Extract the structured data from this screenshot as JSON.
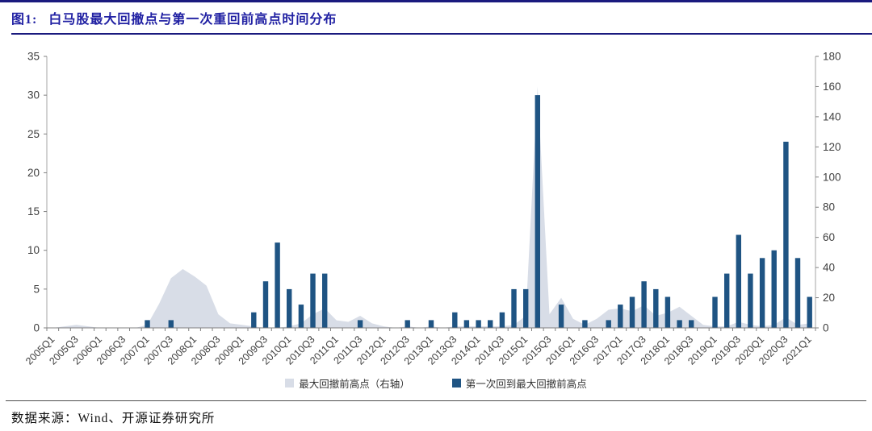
{
  "header": {
    "figure_label": "图1:",
    "title": "白马股最大回撤点与第一次重回前高点时间分布"
  },
  "footer": {
    "source": "数据来源：Wind、开源证券研究所"
  },
  "colors": {
    "accent": "#2121a3",
    "rule": "#1a1a7e",
    "bar": "#1f5483",
    "area": "#d8dde7",
    "axis_line": "#a6a6a6",
    "tick": "#808080",
    "axis_text": "#404040"
  },
  "chart_data": {
    "type": "bar",
    "title": "图1: 白马股最大回撤点与第一次重回前高点时间分布",
    "grid": false,
    "legend_position": "bottom",
    "categories": [
      "2005Q1",
      "2005Q2",
      "2005Q3",
      "2005Q4",
      "2006Q1",
      "2006Q2",
      "2006Q3",
      "2006Q4",
      "2007Q1",
      "2007Q2",
      "2007Q3",
      "2007Q4",
      "2008Q1",
      "2008Q2",
      "2008Q3",
      "2008Q4",
      "2009Q1",
      "2009Q2",
      "2009Q3",
      "2009Q4",
      "2010Q1",
      "2010Q2",
      "2010Q3",
      "2010Q4",
      "2011Q1",
      "2011Q2",
      "2011Q3",
      "2011Q4",
      "2012Q1",
      "2012Q2",
      "2012Q3",
      "2012Q4",
      "2013Q1",
      "2013Q2",
      "2013Q3",
      "2013Q4",
      "2014Q1",
      "2014Q2",
      "2014Q3",
      "2014Q4",
      "2015Q1",
      "2015Q2",
      "2015Q3",
      "2015Q4",
      "2016Q1",
      "2016Q2",
      "2016Q3",
      "2016Q4",
      "2017Q1",
      "2017Q2",
      "2017Q3",
      "2017Q4",
      "2018Q1",
      "2018Q2",
      "2018Q3",
      "2018Q4",
      "2019Q1",
      "2019Q2",
      "2019Q3",
      "2019Q4",
      "2020Q1",
      "2020Q2",
      "2020Q3",
      "2020Q4",
      "2021Q1"
    ],
    "x_label_every": 2,
    "left_axis": {
      "min": 0,
      "max": 35,
      "ticks": [
        0,
        5,
        10,
        15,
        20,
        25,
        30,
        35
      ]
    },
    "right_axis": {
      "min": 0,
      "max": 180,
      "ticks": [
        0,
        20,
        40,
        60,
        80,
        100,
        120,
        140,
        160,
        180
      ]
    },
    "series": [
      {
        "name": "最大回撤前高点（右轴）",
        "type": "area",
        "axis": "right",
        "color": "#d8dde7",
        "values": [
          0,
          1,
          2,
          1,
          0,
          0,
          0,
          0,
          2,
          16,
          33,
          39,
          34,
          28,
          9,
          3,
          2,
          1,
          0,
          0,
          1,
          3,
          9,
          13,
          5,
          4,
          8,
          3,
          1,
          0,
          1,
          0,
          1,
          0,
          1,
          1,
          1,
          1,
          1,
          2,
          8,
          160,
          9,
          20,
          6,
          2,
          6,
          12,
          13,
          11,
          15,
          8,
          10,
          14,
          8,
          2,
          1,
          1,
          4,
          2,
          1,
          2,
          7,
          2,
          3
        ]
      },
      {
        "name": "第一次回到最大回撤前高点",
        "type": "bar",
        "axis": "left",
        "color": "#1f5483",
        "values": [
          0,
          0,
          0,
          0,
          0,
          0,
          0,
          0,
          1,
          0,
          1,
          0,
          0,
          0,
          0,
          0,
          0,
          2,
          6,
          11,
          5,
          3,
          7,
          7,
          0,
          0,
          1,
          0,
          0,
          0,
          1,
          0,
          1,
          0,
          2,
          1,
          1,
          1,
          2,
          5,
          5,
          30,
          0,
          3,
          0,
          1,
          0,
          1,
          3,
          4,
          6,
          5,
          4,
          1,
          1,
          0,
          4,
          7,
          12,
          7,
          9,
          10,
          24,
          9,
          4
        ]
      }
    ]
  }
}
